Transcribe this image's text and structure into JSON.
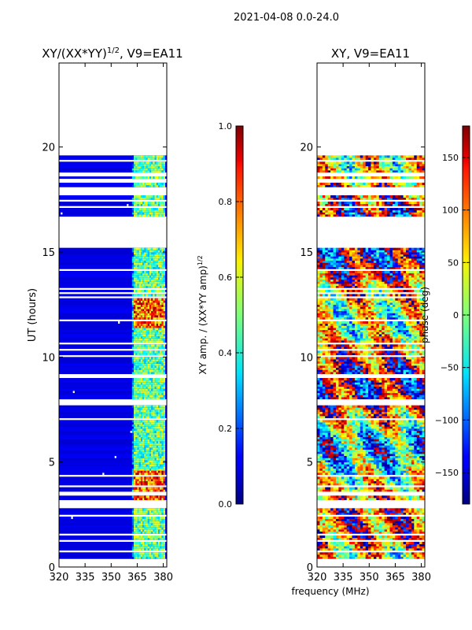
{
  "figure": {
    "suptitle": "2021-04-08 0.0-24.0",
    "xlabel_common": "frequency (MHz)"
  },
  "chart_data": [
    {
      "type": "heatmap",
      "title_main": "XY/(XX*YY)",
      "title_exp": "1/2",
      "title_tail": ", V9=EA11",
      "ylabel": "UT (hours)",
      "xlim": [
        320,
        382
      ],
      "ylim": [
        0,
        24
      ],
      "xticks": [
        "320",
        "335",
        "350",
        "365",
        "380"
      ],
      "xtick_values": [
        320,
        335,
        350,
        365,
        380
      ],
      "yticks": [
        "0",
        "5",
        "10",
        "15",
        "20"
      ],
      "ytick_values": [
        0,
        5,
        10,
        15,
        20
      ],
      "colorbar": {
        "label_main": "XY amp. / (XX*YY amp)",
        "label_exp": "1/2",
        "range": [
          0.0,
          1.0
        ],
        "ticks": [
          "0.0",
          "0.2",
          "0.4",
          "0.6",
          "0.8",
          "1.0"
        ],
        "tick_values": [
          0.0,
          0.2,
          0.4,
          0.6,
          0.8,
          1.0
        ]
      },
      "data_coverage_hours": [
        0.2,
        19.6
      ],
      "gap_hours": [
        [
          2.35,
          2.5
        ],
        [
          2.75,
          3.2
        ],
        [
          7.6,
          7.85
        ],
        [
          8.95,
          9.1
        ],
        [
          14.0,
          14.1
        ],
        [
          15.1,
          16.6
        ],
        [
          17.3,
          17.45
        ],
        [
          17.8,
          18.0
        ],
        [
          18.2,
          18.4
        ],
        [
          18.5,
          18.7
        ]
      ],
      "bright_band_mhz": [
        362,
        381
      ]
    },
    {
      "type": "heatmap",
      "title_main": "XY, V9=EA11",
      "ylabel": "",
      "xlim": [
        320,
        382
      ],
      "ylim": [
        0,
        24
      ],
      "xticks": [
        "320",
        "335",
        "350",
        "365",
        "380"
      ],
      "xtick_values": [
        320,
        335,
        350,
        365,
        380
      ],
      "yticks": [
        "0",
        "5",
        "10",
        "15",
        "20"
      ],
      "ytick_values": [
        0,
        5,
        10,
        15,
        20
      ],
      "colorbar": {
        "label_main": "phase (deg)",
        "range": [
          -180,
          180
        ],
        "ticks": [
          "−150",
          "−100",
          "−50",
          "0",
          "50",
          "100",
          "150"
        ],
        "tick_values": [
          -150,
          -100,
          -50,
          0,
          50,
          100,
          150
        ]
      },
      "data_coverage_hours": [
        0.2,
        19.6
      ]
    }
  ],
  "colors": {
    "jet_low": "#00007f",
    "jet_high": "#7f0000"
  }
}
